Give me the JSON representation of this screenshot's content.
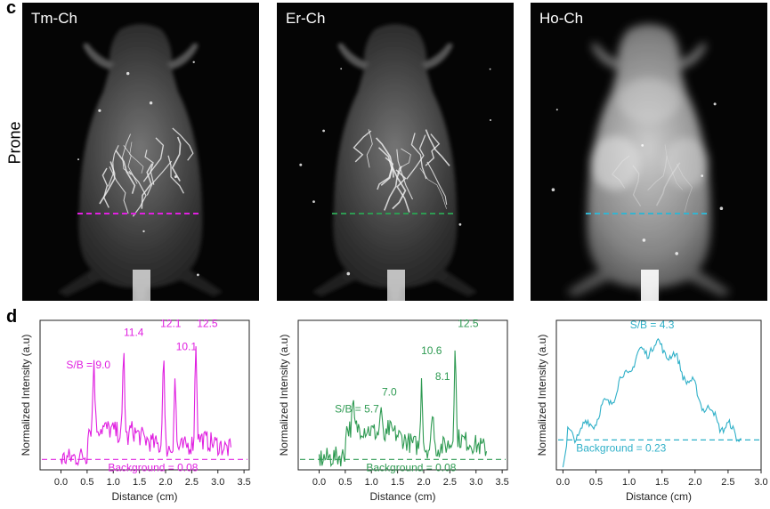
{
  "panels": {
    "c": {
      "letter": "c",
      "row_label": "Prone"
    },
    "d": {
      "letter": "d"
    }
  },
  "images": [
    {
      "title": "Tm-Ch",
      "line_color": "#e020e0",
      "brightness": "high-contrast"
    },
    {
      "title": "Er-Ch",
      "line_color": "#2e9a52",
      "brightness": "high-contrast"
    },
    {
      "title": "Ho-Ch",
      "line_color": "#34b4d0",
      "brightness": "diffuse"
    }
  ],
  "chart_data": [
    {
      "type": "line",
      "color": "#e020e0",
      "xlabel": "Distance (cm)",
      "ylabel": "Normalized Intensity (a.u)",
      "xlim": [
        -0.4,
        3.6
      ],
      "ylim": [
        0,
        1.15
      ],
      "x_ticks": [
        "0.0",
        "0.5",
        "1.0",
        "1.5",
        "2.0",
        "2.5",
        "3.0",
        "3.5"
      ],
      "x_end": 3.25,
      "background_level": 0.08,
      "background_label": "Background = 0.08",
      "peaks": [
        [
          0.63,
          0.78
        ],
        [
          1.2,
          0.9
        ],
        [
          1.96,
          1.0
        ],
        [
          2.18,
          0.8
        ],
        [
          2.58,
          1.03
        ]
      ],
      "annotations": [
        {
          "text": "S/B = 9.0",
          "x": 0.1,
          "y": 0.78
        },
        {
          "text": "11.4",
          "x": 1.2,
          "y": 1.03
        },
        {
          "text": "12.1",
          "x": 1.9,
          "y": 1.1
        },
        {
          "text": "10.1",
          "x": 2.2,
          "y": 0.92
        },
        {
          "text": "12.5",
          "x": 2.6,
          "y": 1.1
        }
      ]
    },
    {
      "type": "line",
      "color": "#2e9a52",
      "xlabel": "Distance (cm)",
      "ylabel": "Normalized Intensity (a.u)",
      "xlim": [
        -0.4,
        3.6
      ],
      "ylim": [
        0,
        1.15
      ],
      "x_ticks": [
        "0.0",
        "0.5",
        "1.0",
        "1.5",
        "2.0",
        "2.5",
        "3.0",
        "3.5"
      ],
      "x_end": 3.2,
      "background_level": 0.08,
      "background_label": "Background = 0.08",
      "peaks": [
        [
          0.65,
          0.42
        ],
        [
          1.18,
          0.47
        ],
        [
          1.96,
          0.8
        ],
        [
          2.17,
          0.58
        ],
        [
          2.6,
          1.0
        ]
      ],
      "annotations": [
        {
          "text": "S/B = 5.7",
          "x": 0.3,
          "y": 0.44
        },
        {
          "text": "7.0",
          "x": 1.2,
          "y": 0.57
        },
        {
          "text": "10.6",
          "x": 1.95,
          "y": 0.89
        },
        {
          "text": "8.1",
          "x": 2.22,
          "y": 0.69
        },
        {
          "text": "12.5",
          "x": 2.65,
          "y": 1.1
        }
      ]
    },
    {
      "type": "line",
      "color": "#2fb0c8",
      "xlabel": "Distance (cm)",
      "ylabel": "Normalized Intensity (a.u)",
      "xlim": [
        -0.1,
        3.0
      ],
      "ylim": [
        0,
        1.15
      ],
      "x_ticks": [
        "0.0",
        "0.5",
        "1.0",
        "1.5",
        "2.0",
        "2.5",
        "3.0"
      ],
      "x_end": 2.7,
      "background_level": 0.23,
      "background_label": "Background = 0.23",
      "annotations": [
        {
          "text": "S/B = 4.3",
          "x": 1.35,
          "y": 1.09
        }
      ]
    }
  ]
}
